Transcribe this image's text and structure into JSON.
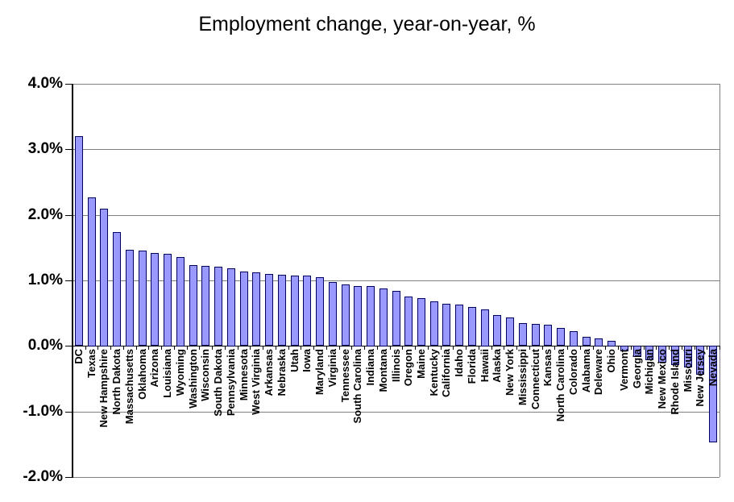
{
  "chart_data": {
    "type": "bar",
    "title": "Employment change, year-on-year, %",
    "xlabel": "",
    "ylabel": "",
    "ylim": [
      -2.0,
      4.0
    ],
    "ytick_step": 1.0,
    "ytick_values": [
      4.0,
      3.0,
      2.0,
      1.0,
      0.0,
      -1.0,
      -2.0
    ],
    "ytick_labels": [
      "4.0%",
      "3.0%",
      "2.0%",
      "1.0%",
      "0.0%",
      "-1.0%",
      "-2.0%"
    ],
    "grid": true,
    "legend": false,
    "bar_color": "#9999FF",
    "bar_border_color": "#000060",
    "gridline_color": "#808080",
    "axis_color": "#000000",
    "categories": [
      "DC",
      "Texas",
      "New Hampshire",
      "North Dakota",
      "Massachusetts",
      "Oklahoma",
      "Arizona",
      "Louisiana",
      "Wyoming",
      "Washington",
      "Wisconsin",
      "South Dakota",
      "Pennsylvania",
      "Minnesota",
      "West Virginia",
      "Arkansas",
      "Nebraska",
      "Utah",
      "Iowa",
      "Maryland",
      "Virginia",
      "Tennessee",
      "South Carolina",
      "Indiana",
      "Montana",
      "Illinois",
      "Oregon",
      "Maine",
      "Kentucky",
      "California",
      "Idaho",
      "Florida",
      "Hawaii",
      "Alaska",
      "New York",
      "Mississippi",
      "Connecticut",
      "Kansas",
      "North Carolina",
      "Colorado",
      "Alabama",
      "Deleware",
      "Ohio",
      "Vermont",
      "Georgia",
      "Michigan",
      "New Mexico",
      "Rhode Island",
      "Missouri",
      "New Jersey",
      "Nevada"
    ],
    "values": [
      3.2,
      2.27,
      2.1,
      1.74,
      1.47,
      1.45,
      1.42,
      1.41,
      1.36,
      1.23,
      1.22,
      1.21,
      1.19,
      1.13,
      1.12,
      1.1,
      1.08,
      1.07,
      1.07,
      1.05,
      0.97,
      0.94,
      0.92,
      0.92,
      0.88,
      0.84,
      0.75,
      0.73,
      0.68,
      0.64,
      0.63,
      0.59,
      0.56,
      0.47,
      0.43,
      0.35,
      0.33,
      0.32,
      0.27,
      0.23,
      0.14,
      0.12,
      0.08,
      -0.08,
      -0.17,
      -0.22,
      -0.26,
      -0.3,
      -0.33,
      -0.44,
      -1.47
    ]
  }
}
